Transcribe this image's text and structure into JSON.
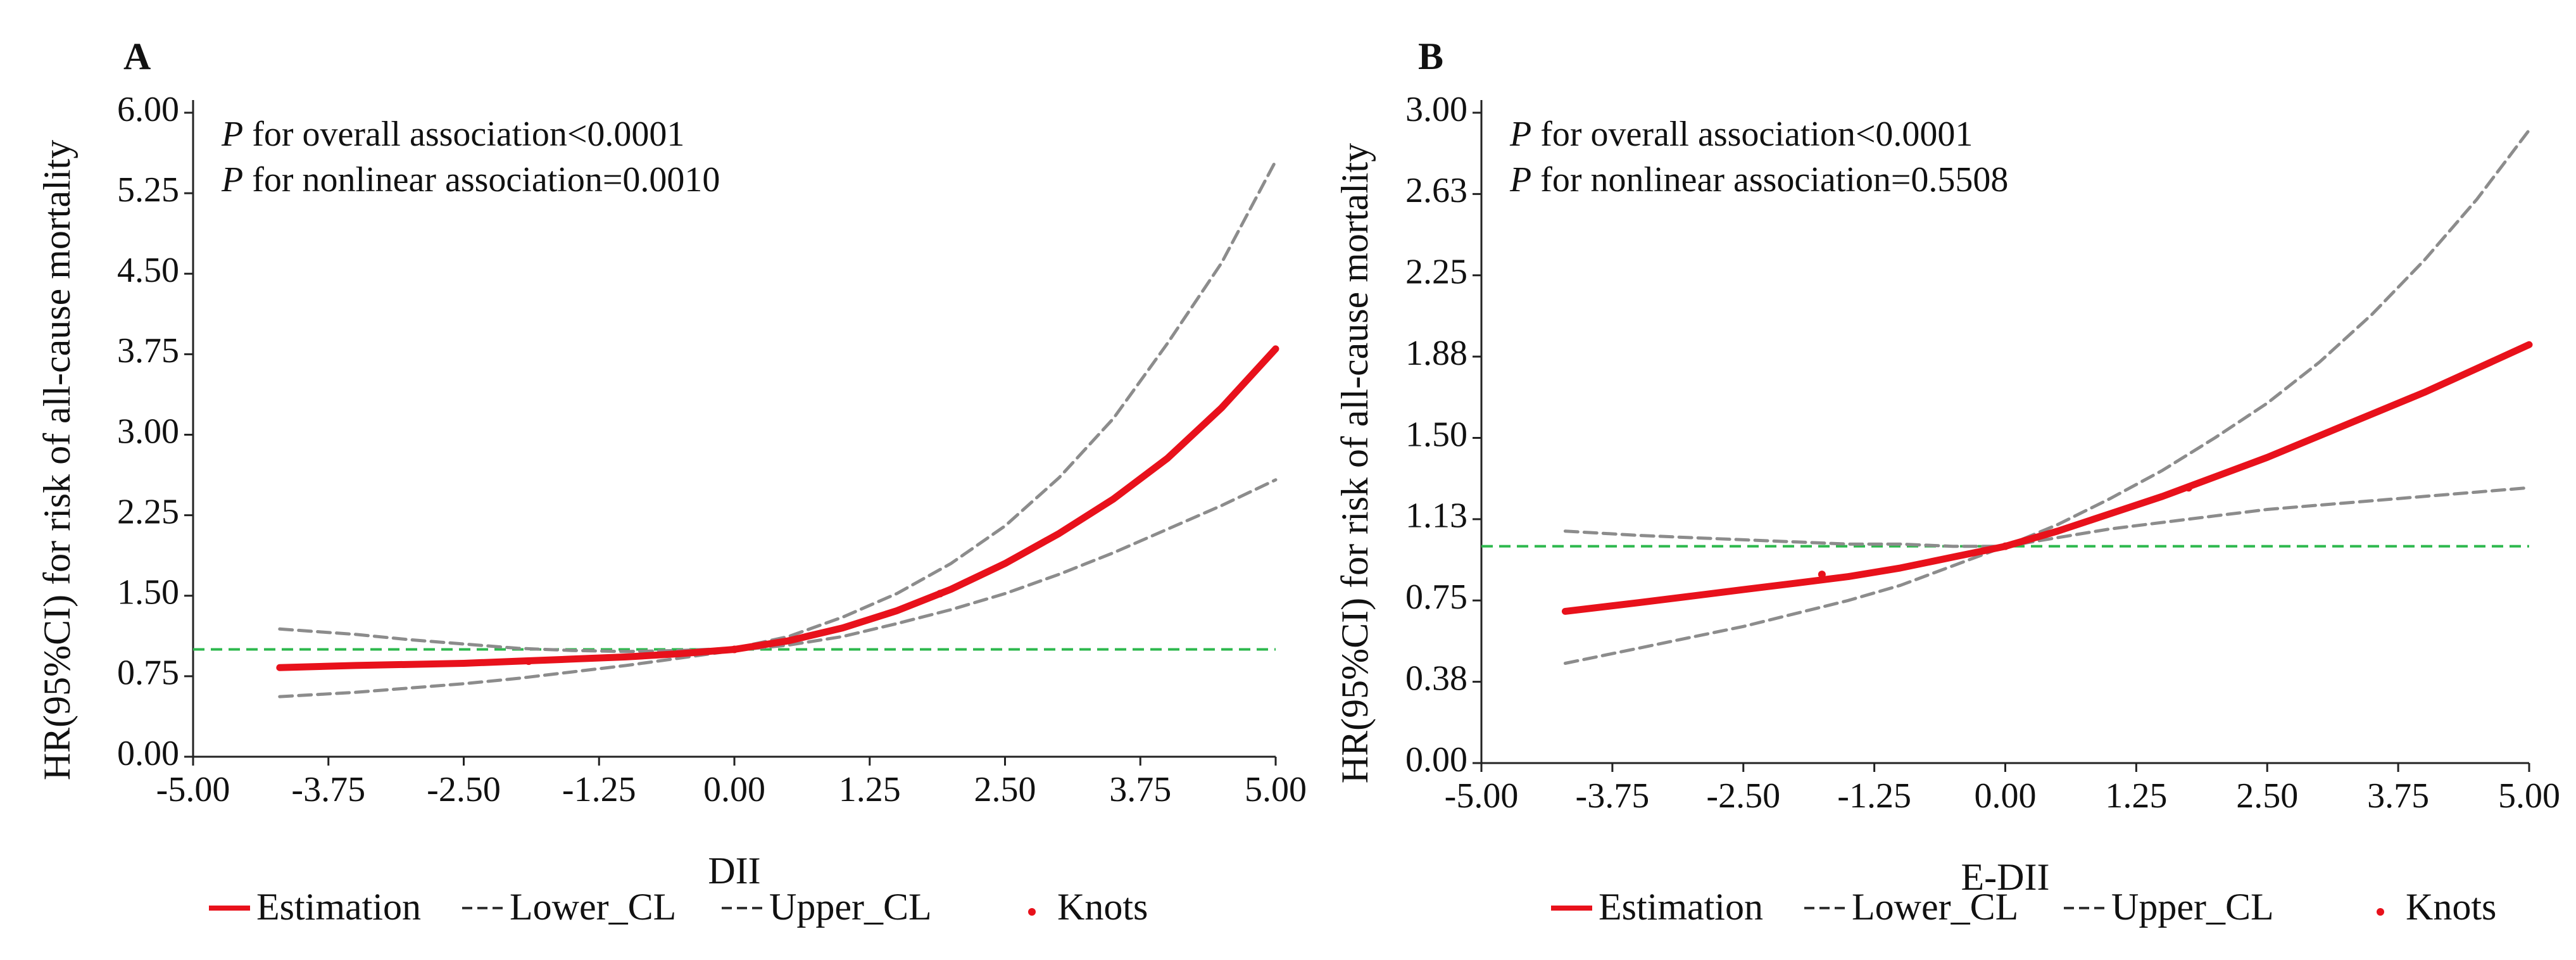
{
  "chart_data": [
    {
      "panel_label": "A",
      "type": "line",
      "xlabel": "DII",
      "ylabel": "HR(95%CI) for risk of all-cause mortality",
      "xlim": [
        -5.0,
        5.0
      ],
      "ylim": [
        0.0,
        6.0
      ],
      "xticks": [
        "-5.00",
        "-3.75",
        "-2.50",
        "-1.25",
        "0.00",
        "1.25",
        "2.50",
        "3.75",
        "5.00"
      ],
      "yticks": [
        "0.00",
        "0.75",
        "1.50",
        "2.25",
        "3.00",
        "3.75",
        "4.50",
        "5.25",
        "6.00"
      ],
      "annotations": [
        {
          "italic": "P",
          "text": " for overall association<0.0001"
        },
        {
          "italic": "P",
          "text": " for nonlinear association=0.0010"
        }
      ],
      "reference_line": {
        "y": 1.0,
        "color": "#2db84d",
        "style": "dashed"
      },
      "x": [
        -4.2,
        -3.5,
        -3.0,
        -2.5,
        -2.0,
        -1.5,
        -1.0,
        -0.5,
        0.0,
        0.5,
        1.0,
        1.5,
        2.0,
        2.5,
        3.0,
        3.5,
        4.0,
        4.5,
        5.0
      ],
      "series": [
        {
          "name": "Estimation",
          "color": "#e8111b",
          "style": "solid",
          "values": [
            0.83,
            0.85,
            0.86,
            0.87,
            0.89,
            0.91,
            0.93,
            0.96,
            1.0,
            1.08,
            1.2,
            1.36,
            1.56,
            1.8,
            2.08,
            2.4,
            2.78,
            3.25,
            3.8
          ]
        },
        {
          "name": "Lower_CL",
          "color": "#8c8c8c",
          "style": "dashed",
          "values": [
            0.56,
            0.6,
            0.64,
            0.68,
            0.73,
            0.79,
            0.85,
            0.92,
            0.99,
            1.04,
            1.12,
            1.24,
            1.37,
            1.52,
            1.7,
            1.9,
            2.12,
            2.34,
            2.58
          ]
        },
        {
          "name": "Upper_CL",
          "color": "#8c8c8c",
          "style": "dashed",
          "values": [
            1.19,
            1.14,
            1.09,
            1.05,
            1.01,
            0.99,
            0.98,
            0.99,
            1.01,
            1.12,
            1.3,
            1.52,
            1.8,
            2.15,
            2.6,
            3.15,
            3.85,
            4.6,
            5.55
          ]
        }
      ],
      "knots": {
        "name": "Knots",
        "x": [
          -1.9,
          0.0,
          1.9
        ],
        "y": [
          0.89,
          1.0,
          1.52
        ],
        "color": "#e8111b"
      },
      "legend": {
        "position": "bottom",
        "items": [
          {
            "label": "Estimation",
            "kind": "solid",
            "color": "#e8111b"
          },
          {
            "label": "Lower_CL",
            "kind": "dashed",
            "color": "#333333"
          },
          {
            "label": "Upper_CL",
            "kind": "dashed",
            "color": "#333333"
          },
          {
            "label": "Knots",
            "kind": "dot",
            "color": "#e8111b"
          }
        ]
      }
    },
    {
      "panel_label": "B",
      "type": "line",
      "xlabel": "E-DII",
      "ylabel": "HR(95%CI) for risk of all-cause mortality",
      "xlim": [
        -5.0,
        5.0
      ],
      "ylim": [
        0.0,
        3.0
      ],
      "xticks": [
        "-5.00",
        "-3.75",
        "-2.50",
        "-1.25",
        "0.00",
        "1.25",
        "2.50",
        "3.75",
        "5.00"
      ],
      "yticks": [
        "0.00",
        "0.38",
        "0.75",
        "1.13",
        "1.50",
        "1.88",
        "2.25",
        "2.63",
        "3.00"
      ],
      "annotations": [
        {
          "italic": "P",
          "text": " for overall association<0.0001"
        },
        {
          "italic": "P",
          "text": " for nonlinear association=0.5508"
        }
      ],
      "reference_line": {
        "y": 1.0,
        "color": "#2db84d",
        "style": "dashed"
      },
      "x": [
        -4.2,
        -3.5,
        -3.0,
        -2.5,
        -2.0,
        -1.5,
        -1.0,
        -0.5,
        0.0,
        0.5,
        1.0,
        1.5,
        2.0,
        2.5,
        3.0,
        3.5,
        4.0,
        4.5,
        5.0
      ],
      "series": [
        {
          "name": "Estimation",
          "color": "#e8111b",
          "style": "solid",
          "values": [
            0.7,
            0.74,
            0.77,
            0.8,
            0.83,
            0.86,
            0.9,
            0.95,
            1.0,
            1.07,
            1.15,
            1.23,
            1.32,
            1.41,
            1.51,
            1.61,
            1.71,
            1.82,
            1.93
          ]
        },
        {
          "name": "Lower_CL",
          "color": "#8c8c8c",
          "style": "dashed",
          "values": [
            1.07,
            1.05,
            1.04,
            1.03,
            1.02,
            1.01,
            1.01,
            1.0,
            1.0,
            1.04,
            1.08,
            1.11,
            1.14,
            1.17,
            1.19,
            1.21,
            1.23,
            1.25,
            1.27
          ]
        },
        {
          "name": "Upper_CL",
          "color": "#8c8c8c",
          "style": "dashed",
          "values": [
            0.46,
            0.53,
            0.58,
            0.63,
            0.69,
            0.75,
            0.82,
            0.91,
            1.0,
            1.1,
            1.22,
            1.35,
            1.5,
            1.66,
            1.85,
            2.07,
            2.32,
            2.6,
            2.92
          ]
        }
      ],
      "knots": {
        "name": "Knots",
        "x": [
          -1.75,
          0.0,
          1.75
        ],
        "y": [
          0.87,
          1.0,
          1.27
        ],
        "color": "#e8111b"
      },
      "legend": {
        "position": "bottom",
        "items": [
          {
            "label": "Estimation",
            "kind": "solid",
            "color": "#e8111b"
          },
          {
            "label": "Lower_CL",
            "kind": "dashed",
            "color": "#333333"
          },
          {
            "label": "Upper_CL",
            "kind": "dashed",
            "color": "#333333"
          },
          {
            "label": "Knots",
            "kind": "dot",
            "color": "#e8111b"
          }
        ]
      }
    }
  ]
}
